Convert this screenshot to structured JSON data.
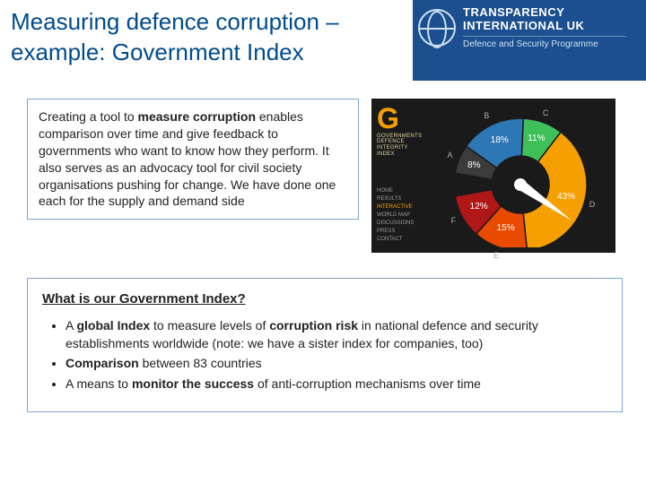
{
  "header": {
    "bar_color": "#1b4f8f",
    "title": "Measuring defence corruption – example: Government Index",
    "title_color": "#004b8d",
    "title_fontsize": 26
  },
  "logo": {
    "line1": "TRANSPARENCY",
    "line2": "INTERNATIONAL UK",
    "sub": "Defence and Security Programme"
  },
  "intro": {
    "text": "Creating a tool to measure corruption enables comparison over time and give feedback to governments who want to know how they perform. It also serves as an advocacy tool for civil society organisations pushing for change. We have done one each for the supply and demand side",
    "border_color": "#7fa6cc",
    "fontsize": 14
  },
  "chart": {
    "type": "gauge-pie",
    "background_color": "#1a1a1a",
    "g_letter": "G",
    "g_color": "#f5a000",
    "g_label": "GOVERNMENTS DEFENCE INTEGRITY INDEX",
    "menu": [
      "HOME",
      "RESULTS",
      "INTERACTIVE",
      "WORLD MAP",
      "DISCUSSIONS",
      "PRESS",
      "CONTACT"
    ],
    "menu_active_index": 2,
    "segments": [
      {
        "band": "A",
        "pct": 8,
        "color": "#3b3b3b",
        "label": "8%"
      },
      {
        "band": "B",
        "pct": 18,
        "color": "#2d77b5",
        "label": "18%"
      },
      {
        "band": "C",
        "pct": 11,
        "color": "#3fbf5a",
        "label": "11%"
      },
      {
        "band": "D",
        "pct": 43,
        "color": "#f5a000",
        "label": "43%"
      },
      {
        "band": "E",
        "pct": 15,
        "color": "#e84a00",
        "label": "15%"
      },
      {
        "band": "F",
        "pct": 12,
        "color": "#b01817",
        "label": "12%"
      }
    ],
    "center_color": "#1a1a1a",
    "needle_color": "#ffffff",
    "start_angle_deg": 190,
    "total_sweep_deg": 340
  },
  "lower": {
    "heading": "What is our Government Index?",
    "border_color": "#7fa6cc",
    "bullets": [
      "A global Index to measure levels of corruption risk in national defence and security establishments worldwide (note: we have a sister index for companies, too)",
      "Comparison between 83 countries",
      "A means to monitor the success of anti-corruption mechanisms over time"
    ]
  }
}
